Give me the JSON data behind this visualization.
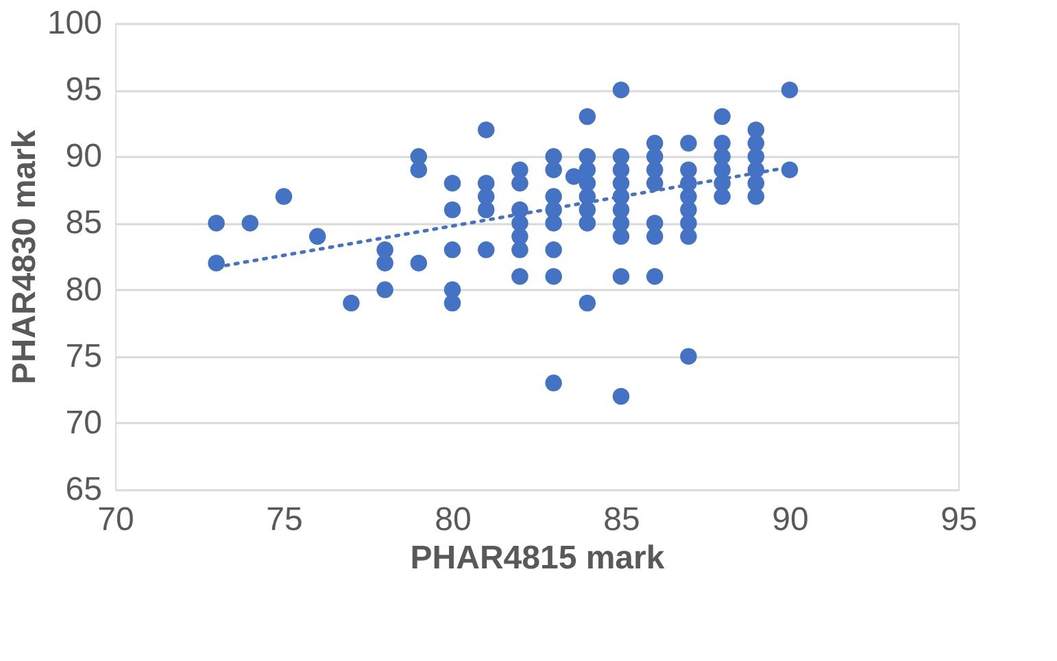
{
  "chart_data": {
    "type": "scatter",
    "xlabel": "PHAR4815 mark",
    "ylabel": "PHAR4830 mark",
    "xlim": [
      70,
      95
    ],
    "xticks": [
      70,
      75,
      80,
      85,
      90,
      95
    ],
    "ylim": [
      65,
      100
    ],
    "yticks": [
      65,
      70,
      75,
      80,
      85,
      90,
      95,
      100
    ],
    "grid": "y",
    "marker": "circle",
    "series": [
      {
        "color": "#4472c4",
        "x": [
          73,
          73,
          74,
          75,
          76,
          77,
          78,
          78,
          78,
          79,
          79,
          79,
          80,
          80,
          80,
          80,
          80,
          81,
          81,
          81,
          81,
          81,
          82,
          82,
          82,
          82,
          82,
          82,
          82,
          83,
          83,
          83,
          83,
          83,
          83,
          83,
          83,
          83.6,
          84,
          84,
          84,
          84,
          84,
          84,
          84,
          84,
          85,
          85,
          85,
          85,
          85,
          85,
          85,
          85,
          85,
          85,
          86,
          86,
          86,
          86,
          86,
          86,
          86,
          87,
          87,
          87,
          87,
          87,
          87,
          87,
          87,
          88,
          88,
          88,
          88,
          88,
          88,
          89,
          89,
          89,
          89,
          89,
          89,
          90,
          90
        ],
        "values": [
          85,
          82,
          85,
          87,
          84,
          79,
          83,
          82,
          80,
          90,
          89,
          82,
          88,
          86,
          83,
          80,
          79,
          92,
          88,
          87,
          86,
          83,
          89,
          88,
          86,
          85,
          84,
          83,
          81,
          90,
          89,
          87,
          86,
          85,
          83,
          81,
          73,
          88.5,
          93,
          90,
          89,
          88,
          87,
          86,
          85,
          79,
          95,
          90,
          89,
          88,
          87,
          86,
          85,
          84,
          81,
          72,
          91,
          90,
          89,
          88,
          85,
          84,
          81,
          91,
          89,
          88,
          87,
          86,
          85,
          84,
          75,
          93,
          91,
          90,
          89,
          88,
          87,
          92,
          91,
          90,
          89,
          88,
          87,
          95,
          89
        ]
      },
      {
        "type": "line",
        "color": "#4472c4",
        "line_style": "dotted",
        "marker": "none",
        "x": [
          73,
          90
        ],
        "values": [
          81.7,
          89.2
        ]
      }
    ]
  }
}
